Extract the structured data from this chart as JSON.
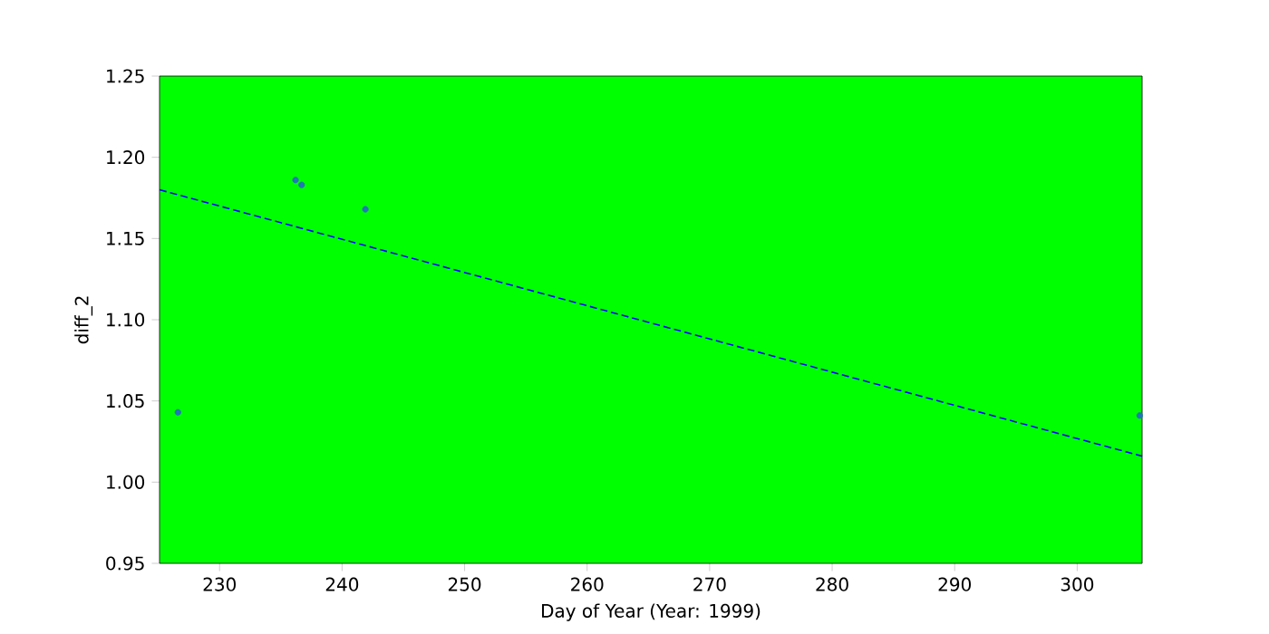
{
  "chart_data": {
    "type": "scatter",
    "xlabel": "Day of Year (Year: 1999)",
    "ylabel": "diff_2",
    "xlim": [
      225.1,
      305.3
    ],
    "ylim": [
      0.95,
      1.25
    ],
    "xticks": [
      230,
      240,
      250,
      260,
      270,
      280,
      290,
      300
    ],
    "yticks": [
      0.95,
      {
        "value": 1.0,
        "label": "1.00"
      },
      1.05,
      {
        "value": 1.1,
        "label": "1.10"
      },
      1.15,
      {
        "value": 1.2,
        "label": "1.20"
      },
      1.25
    ],
    "grid": false,
    "marker": "circle",
    "series": [
      {
        "color": "#1f77b4",
        "x": [
          226.6,
          236.2,
          236.7,
          241.9,
          305.1
        ],
        "values": [
          1.043,
          1.186,
          1.183,
          1.168,
          1.041
        ]
      },
      {
        "type": "line",
        "color": "#0000ff",
        "line_style": "dashed",
        "marker": "none",
        "x": [
          225.1,
          305.3
        ],
        "values": [
          1.18,
          1.016
        ]
      }
    ]
  }
}
